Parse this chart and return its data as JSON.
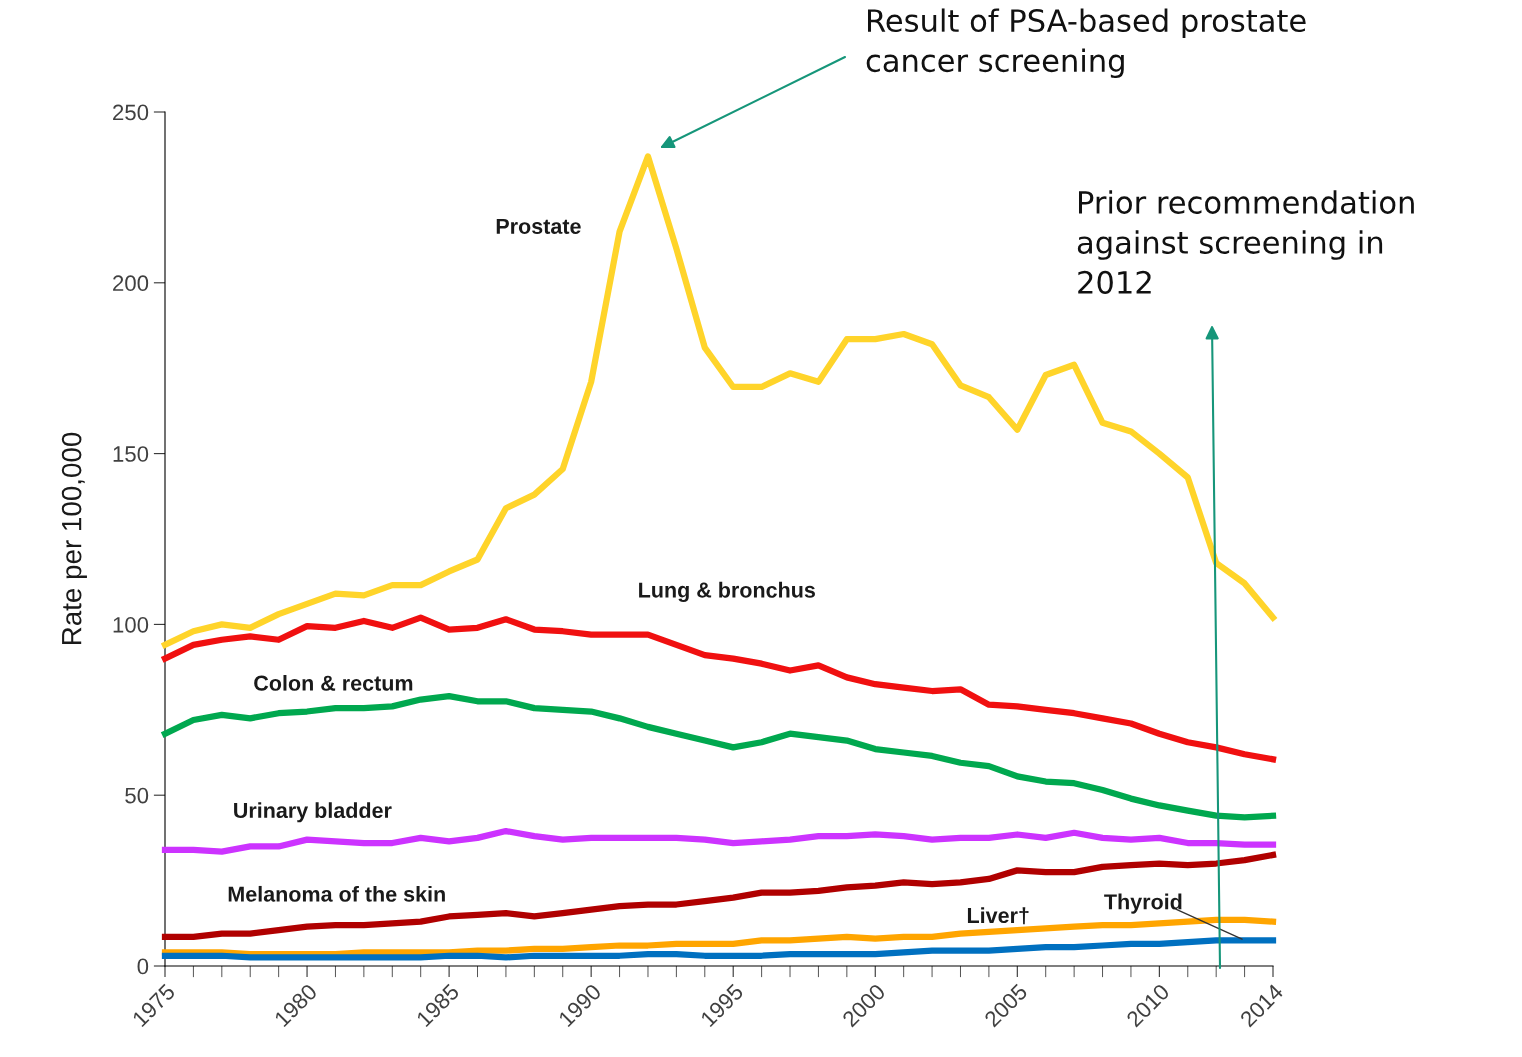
{
  "chart_data": {
    "type": "line",
    "ylabel": "Rate per 100,000",
    "x": [
      1975,
      1976,
      1977,
      1978,
      1979,
      1980,
      1981,
      1982,
      1983,
      1984,
      1985,
      1986,
      1987,
      1988,
      1989,
      1990,
      1991,
      1992,
      1993,
      1994,
      1995,
      1996,
      1997,
      1998,
      1999,
      2000,
      2001,
      2002,
      2003,
      2004,
      2005,
      2006,
      2007,
      2008,
      2009,
      2010,
      2011,
      2012,
      2013,
      2014
    ],
    "xlim": [
      1975,
      2014
    ],
    "xticks": [
      1975,
      1980,
      1985,
      1990,
      1995,
      2000,
      2005,
      2010,
      2014
    ],
    "ylim": [
      0,
      250
    ],
    "yticks": [
      0,
      50,
      100,
      150,
      200,
      250
    ],
    "grid": false,
    "legend": false,
    "marker": "none",
    "line_style": "solid",
    "series": [
      {
        "name": "Prostate",
        "color": "#ffd42a",
        "values": [
          94,
          98,
          100,
          99,
          103,
          106,
          109,
          108.5,
          111.5,
          111.5,
          115.5,
          119,
          134,
          138,
          145.5,
          171,
          215,
          237,
          210,
          181,
          169.5,
          169.5,
          173.5,
          171,
          183.5,
          183.5,
          185,
          182,
          170,
          166.5,
          157,
          173,
          176,
          159,
          156.5,
          150,
          143,
          118,
          112,
          102
        ]
      },
      {
        "name": "Lung & bronchus",
        "color": "#f01010",
        "values": [
          90,
          94,
          95.5,
          96.5,
          95.5,
          99.5,
          99,
          101,
          99,
          102,
          98.5,
          99,
          101.5,
          98.5,
          98,
          97,
          97,
          97,
          94,
          91,
          90,
          88.5,
          86.5,
          88,
          84.5,
          82.5,
          81.5,
          80.5,
          81,
          76.5,
          76,
          75,
          74,
          72.5,
          71,
          68,
          65.5,
          64,
          62,
          60.5
        ]
      },
      {
        "name": "Colon & rectum",
        "color": "#00a84f",
        "values": [
          68,
          72,
          73.5,
          72.5,
          74,
          74.5,
          75.5,
          75.5,
          76,
          78,
          79,
          77.5,
          77.5,
          75.5,
          75,
          74.5,
          72.5,
          70,
          68,
          66,
          64,
          65.5,
          68,
          67,
          66,
          63.5,
          62.5,
          61.5,
          59.5,
          58.5,
          55.5,
          54,
          53.5,
          51.5,
          49,
          47,
          45.5,
          44,
          43.5,
          44
        ]
      },
      {
        "name": "Urinary bladder",
        "color": "#cc33ff",
        "values": [
          34,
          34,
          33.5,
          35,
          35,
          37,
          36.5,
          36,
          36,
          37.5,
          36.5,
          37.5,
          39.5,
          38,
          37,
          37.5,
          37.5,
          37.5,
          37.5,
          37,
          36,
          36.5,
          37,
          38,
          38,
          38.5,
          38,
          37,
          37.5,
          37.5,
          38.5,
          37.5,
          39,
          37.5,
          37,
          37.5,
          36,
          36,
          35.5,
          35.5
        ]
      },
      {
        "name": "Melanoma of the skin",
        "color": "#b00000",
        "values": [
          8.5,
          8.5,
          9.5,
          9.5,
          10.5,
          11.5,
          12,
          12,
          12.5,
          13,
          14.5,
          15,
          15.5,
          14.5,
          15.5,
          16.5,
          17.5,
          18,
          18,
          19,
          20,
          21.5,
          21.5,
          22,
          23,
          23.5,
          24.5,
          24,
          24.5,
          25.5,
          28,
          27.5,
          27.5,
          29,
          29.5,
          30,
          29.5,
          30,
          31,
          32.5
        ]
      },
      {
        "name": "Liver†",
        "color": "#ffa500",
        "values": [
          4,
          4,
          4,
          3.5,
          3.5,
          3.5,
          3.5,
          4,
          4,
          4,
          4,
          4.5,
          4.5,
          5,
          5,
          5.5,
          6,
          6,
          6.5,
          6.5,
          6.5,
          7.5,
          7.5,
          8,
          8.5,
          8,
          8.5,
          8.5,
          9.5,
          10,
          10.5,
          11,
          11.5,
          12,
          12,
          12.5,
          13,
          13.5,
          13.5,
          13
        ]
      },
      {
        "name": "Thyroid",
        "color": "#0070c0",
        "values": [
          3,
          3,
          3,
          2.5,
          2.5,
          2.5,
          2.5,
          2.5,
          2.5,
          2.5,
          3,
          3,
          2.5,
          3,
          3,
          3,
          3,
          3.5,
          3.5,
          3,
          3,
          3,
          3.5,
          3.5,
          3.5,
          3.5,
          4,
          4.5,
          4.5,
          4.5,
          5,
          5.5,
          5.5,
          6,
          6.5,
          6.5,
          7,
          7.5,
          7.5,
          7.5
        ]
      }
    ],
    "annotations": [
      "Result of PSA-based prostate\ncancer screening",
      "Prior recommendation\nagainst screening in\n2012"
    ]
  }
}
